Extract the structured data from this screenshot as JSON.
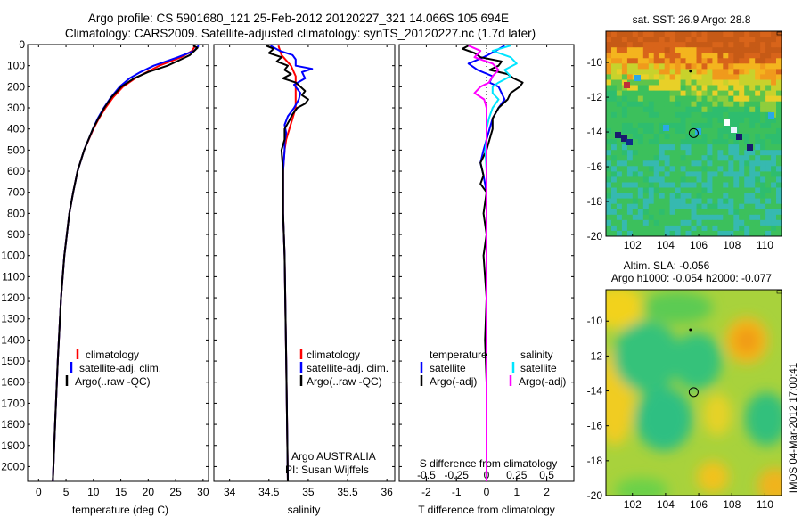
{
  "header": {
    "line1": "Argo profile: CS 5901680_121 25-Feb-2012 20120227_321 14.066S 105.694E",
    "line2": "Climatology: CARS2009. Satellite-adjusted climatology: synTS_20120227.nc (1.7d later)"
  },
  "side_label": "IMOS 04-Mar-2012 17:00:41",
  "colors": {
    "climatology": "#ff0000",
    "satellite": "#0000ff",
    "argo": "#000000",
    "salinity_sat": "#00e5ff",
    "salinity_argo": "#ff00ff"
  },
  "chart_data": [
    {
      "id": "temperature",
      "type": "line",
      "xlabel": "temperature (deg C)",
      "xlim": [
        -2,
        31
      ],
      "xticks": [
        0,
        5,
        10,
        15,
        20,
        25,
        30
      ],
      "ylim": [
        2070,
        0
      ],
      "yticks": [
        0,
        100,
        200,
        300,
        400,
        500,
        600,
        700,
        800,
        900,
        1000,
        1100,
        1200,
        1300,
        1400,
        1500,
        1600,
        1700,
        1800,
        1900,
        2000
      ],
      "legend": [
        "climatology",
        "satellite-adj. clim.",
        "Argo(..raw -QC)"
      ],
      "series": [
        {
          "name": "climatology",
          "color": "#ff0000",
          "depth": [
            5,
            30,
            60,
            100,
            130,
            160,
            200,
            250,
            300,
            350,
            400,
            500,
            600,
            700,
            800,
            1000,
            1200,
            1500,
            1800,
            2070
          ],
          "values": [
            28.6,
            28,
            26,
            22,
            19.8,
            17.6,
            15.4,
            13.6,
            12.2,
            11,
            10,
            8.3,
            7.1,
            6.3,
            5.6,
            4.7,
            4.1,
            3.5,
            3,
            2.6
          ]
        },
        {
          "name": "satellite-adj. clim.",
          "color": "#0000ff",
          "depth": [
            5,
            30,
            60,
            100,
            130,
            160,
            200,
            250,
            300,
            350,
            400,
            500,
            600,
            700,
            800,
            1000,
            1200,
            1500,
            1800,
            2070
          ],
          "values": [
            29.2,
            28.4,
            25.4,
            21,
            18.6,
            16.6,
            14.8,
            13.2,
            11.9,
            10.8,
            9.9,
            8.3,
            7.1,
            6.3,
            5.6,
            4.7,
            4.1,
            3.5,
            3,
            2.6
          ]
        },
        {
          "name": "Argo(..raw -QC)",
          "color": "#000000",
          "depth": [
            5,
            15,
            30,
            50,
            70,
            100,
            130,
            160,
            200,
            250,
            300,
            350,
            400,
            500,
            600,
            700,
            800,
            1000,
            1200,
            1500,
            1800,
            2070
          ],
          "values": [
            28.2,
            29,
            28.4,
            27.6,
            26,
            23.5,
            20,
            17.4,
            15.1,
            13.3,
            12,
            10.9,
            9.9,
            8.3,
            7.1,
            6.3,
            5.6,
            4.7,
            4.1,
            3.5,
            3,
            2.6
          ]
        }
      ]
    },
    {
      "id": "salinity",
      "type": "line",
      "xlabel": "salinity",
      "xlim": [
        33.8,
        36.1
      ],
      "xticks": [
        34,
        34.5,
        35,
        35.5,
        36
      ],
      "ylim": [
        2070,
        0
      ],
      "legend": [
        "climatology",
        "satellite-adj. clim.",
        "Argo(..raw -QC)"
      ],
      "annotation": [
        "Argo AUSTRALIA",
        "PI: Susan Wijffels"
      ],
      "series": [
        {
          "name": "climatology",
          "color": "#ff0000",
          "depth": [
            5,
            50,
            100,
            150,
            200,
            250,
            300,
            350,
            400,
            450,
            500,
            600,
            800,
            1000,
            1500,
            2070
          ],
          "values": [
            34.62,
            34.66,
            34.78,
            34.84,
            34.84,
            34.84,
            34.84,
            34.8,
            34.76,
            34.72,
            34.7,
            34.68,
            34.68,
            34.7,
            34.72,
            34.74
          ]
        },
        {
          "name": "satellite-adj. clim.",
          "color": "#0000ff",
          "depth": [
            5,
            30,
            50,
            70,
            100,
            115,
            130,
            160,
            190,
            230,
            260,
            300,
            340,
            380,
            420,
            460,
            500,
            600,
            800,
            1000,
            1500,
            2070
          ],
          "values": [
            34.52,
            34.64,
            34.8,
            34.84,
            34.84,
            35.05,
            34.92,
            34.96,
            34.82,
            34.9,
            34.88,
            34.82,
            34.74,
            34.7,
            34.72,
            34.7,
            34.7,
            34.68,
            34.68,
            34.7,
            34.72,
            34.74
          ]
        },
        {
          "name": "Argo(..raw -QC)",
          "color": "#000000",
          "depth": [
            5,
            20,
            40,
            60,
            80,
            100,
            120,
            140,
            160,
            180,
            200,
            220,
            240,
            260,
            280,
            300,
            330,
            360,
            400,
            450,
            500,
            600,
            800,
            1000,
            1500,
            2070
          ],
          "values": [
            34.46,
            34.56,
            34.5,
            34.66,
            34.6,
            34.74,
            34.7,
            34.78,
            34.68,
            34.84,
            34.9,
            34.96,
            34.92,
            35,
            34.96,
            34.86,
            34.8,
            34.76,
            34.7,
            34.7,
            34.66,
            34.68,
            34.68,
            34.7,
            34.72,
            34.74
          ]
        }
      ]
    },
    {
      "id": "difference",
      "type": "line",
      "xlabel": "T difference from climatology",
      "xlabel_top": "S difference from climatology",
      "xlim": [
        -2.9,
        2.9
      ],
      "xticks": [
        -2,
        -1,
        0,
        1,
        2
      ],
      "xticks_top": [
        -0.5,
        -0.25,
        0,
        0.25,
        0.5
      ],
      "ylim": [
        2070,
        0
      ],
      "legend_temperature": [
        "temperature",
        "satellite",
        "Argo(-adj)"
      ],
      "legend_salinity": [
        "salinity",
        "satellite",
        "Argo(-adj)"
      ],
      "series": [
        {
          "name": "temperature satellite",
          "color": "#0000ff",
          "depth": [
            5,
            30,
            60,
            90,
            120,
            150,
            180,
            200,
            230,
            260,
            300,
            350,
            400,
            450,
            500,
            560,
            620,
            700,
            800,
            1000,
            1200,
            1500,
            1800,
            2070
          ],
          "values": [
            0.6,
            0.3,
            -0.1,
            -0.6,
            -0.3,
            0.2,
            0.1,
            0.4,
            0.5,
            0.6,
            0.4,
            0.2,
            0.1,
            0,
            -0.1,
            -0.2,
            -0.1,
            0,
            0,
            0,
            0,
            0,
            0,
            0
          ]
        },
        {
          "name": "temperature Argo(-adj)",
          "color": "#000000",
          "depth": [
            5,
            20,
            40,
            60,
            80,
            100,
            120,
            140,
            160,
            180,
            200,
            230,
            260,
            300,
            350,
            400,
            450,
            500,
            560,
            620,
            660,
            700,
            800,
            900,
            1000,
            1200,
            1400,
            1600,
            1800,
            2070
          ],
          "values": [
            -0.6,
            -0.8,
            -0.4,
            -0.2,
            0.5,
            0.4,
            0.1,
            0.7,
            0.9,
            1.2,
            1.1,
            0.8,
            0.7,
            0.4,
            0.2,
            0.2,
            0.1,
            0,
            -0.2,
            -0.1,
            -0.2,
            0,
            -0.1,
            0,
            -0.1,
            0,
            -0.05,
            0,
            0,
            0
          ]
        },
        {
          "name": "salinity satellite",
          "color": "#00e5ff",
          "depth": [
            5,
            30,
            60,
            90,
            120,
            150,
            180,
            200,
            230,
            260,
            300,
            350,
            400,
            450,
            500,
            600,
            700,
            800,
            1000,
            1500,
            2070
          ],
          "values": [
            0.2,
            0.05,
            0.2,
            0.25,
            0.15,
            0.2,
            0.1,
            0.05,
            0.05,
            0.1,
            0.05,
            0.02,
            0,
            0,
            -0.01,
            0,
            0,
            0,
            0,
            0,
            0
          ]
        },
        {
          "name": "salinity Argo(-adj)",
          "color": "#ff00ff",
          "depth": [
            5,
            30,
            60,
            90,
            120,
            150,
            180,
            200,
            230,
            260,
            300,
            350,
            400,
            450,
            500,
            600,
            700,
            800,
            1000,
            1500,
            2070
          ],
          "values": [
            -0.15,
            -0.05,
            -0.1,
            0.05,
            0.1,
            0.05,
            0.02,
            -0.05,
            -0.1,
            -0.02,
            0,
            0,
            0,
            0,
            0,
            0,
            0,
            0,
            0,
            0,
            0
          ]
        }
      ]
    }
  ],
  "maps": {
    "sst": {
      "title": "sat. SST: 26.9  Argo: 28.8",
      "xticks": [
        102,
        104,
        106,
        108,
        110
      ],
      "yticks": [
        -10,
        -12,
        -14,
        -16,
        -18,
        -20
      ],
      "xlim": [
        100.4,
        111
      ],
      "ylim": [
        -20,
        -8.2
      ],
      "profile_lon": 105.694,
      "profile_lat": -14.066
    },
    "sla": {
      "title1": "Altim. SLA: -0.056",
      "title2": "Argo h1000: -0.054  h2000: -0.077",
      "xticks": [
        102,
        104,
        106,
        108,
        110
      ],
      "yticks": [
        -10,
        -12,
        -14,
        -16,
        -18,
        -20
      ],
      "xlim": [
        100.4,
        111
      ],
      "ylim": [
        -20,
        -8.2
      ],
      "profile_lon": 105.694,
      "profile_lat": -14.066
    }
  }
}
